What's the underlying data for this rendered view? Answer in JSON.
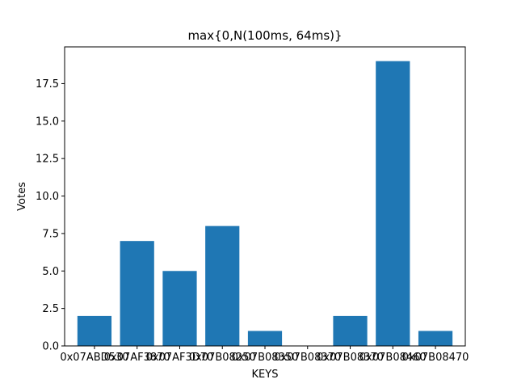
{
  "chart_data": {
    "type": "bar",
    "title": "max{0,N(100ms, 64ms)}",
    "xlabel": "KEYS",
    "ylabel": "Votes",
    "categories": [
      "0x07ABD530",
      "0x07AF3870",
      "0x07AF3D70",
      "0x07B08250",
      "0x07B08350",
      "0x07B08370",
      "0x07B08370",
      "0x07B08460",
      "0x07B08470"
    ],
    "values": [
      2,
      7,
      5,
      8,
      1,
      0,
      2,
      19,
      1
    ],
    "ylim": [
      0,
      19.95
    ],
    "yticks": [
      0.0,
      2.5,
      5.0,
      7.5,
      10.0,
      12.5,
      15.0,
      17.5
    ],
    "ytick_labels": [
      "0.0",
      "2.5",
      "5.0",
      "7.5",
      "10.0",
      "12.5",
      "15.0",
      "17.5"
    ],
    "bar_color": "#1f77b4",
    "grid": false,
    "legend": "none"
  }
}
